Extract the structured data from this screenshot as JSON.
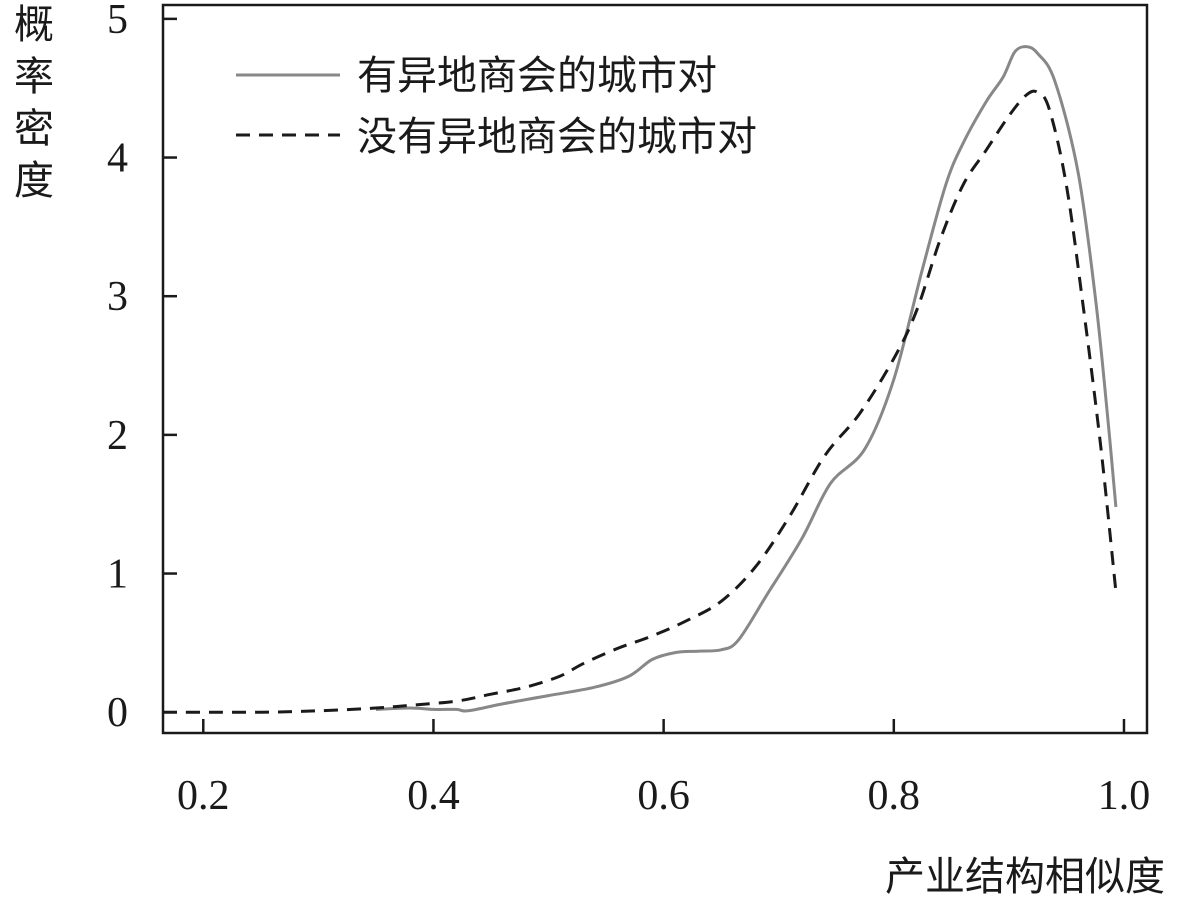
{
  "chart_data": {
    "type": "line",
    "xlabel": "产业结构相似度",
    "ylabel": "概率密度",
    "xlim": [
      0.165,
      1.02
    ],
    "ylim": [
      -0.15,
      5.1
    ],
    "xticks": [
      0.2,
      0.4,
      0.6,
      0.8,
      1.0
    ],
    "xtick_labels": [
      "0.2",
      "0.4",
      "0.6",
      "0.8",
      "1.0"
    ],
    "yticks": [
      0,
      1,
      2,
      3,
      4,
      5
    ],
    "ytick_labels": [
      "0",
      "1",
      "2",
      "3",
      "4",
      "5"
    ],
    "grid": false,
    "legend_position": "top-left",
    "series": [
      {
        "name": "有异地商会的城市对",
        "style": "solid",
        "color": "#888888",
        "x": [
          0.35,
          0.38,
          0.4,
          0.42,
          0.43,
          0.46,
          0.5,
          0.54,
          0.57,
          0.59,
          0.61,
          0.63,
          0.65,
          0.665,
          0.69,
          0.72,
          0.745,
          0.775,
          0.8,
          0.825,
          0.845,
          0.86,
          0.88,
          0.895,
          0.905,
          0.915,
          0.925,
          0.94,
          0.96,
          0.975,
          0.985,
          0.993
        ],
        "y": [
          0.02,
          0.03,
          0.02,
          0.02,
          0.01,
          0.06,
          0.12,
          0.18,
          0.26,
          0.38,
          0.43,
          0.44,
          0.45,
          0.52,
          0.85,
          1.25,
          1.65,
          1.9,
          2.4,
          3.2,
          3.8,
          4.1,
          4.4,
          4.58,
          4.76,
          4.8,
          4.75,
          4.55,
          3.9,
          3.0,
          2.2,
          1.48
        ]
      },
      {
        "name": "没有异地商会的城市对",
        "style": "dashed",
        "color": "#1a1a1a",
        "x": [
          0.165,
          0.2,
          0.25,
          0.3,
          0.35,
          0.38,
          0.42,
          0.45,
          0.48,
          0.51,
          0.53,
          0.56,
          0.59,
          0.62,
          0.65,
          0.68,
          0.71,
          0.74,
          0.77,
          0.8,
          0.82,
          0.84,
          0.86,
          0.88,
          0.9,
          0.915,
          0.925,
          0.935,
          0.95,
          0.965,
          0.98,
          0.993
        ],
        "y": [
          0.0,
          0.0,
          0.0,
          0.01,
          0.03,
          0.05,
          0.08,
          0.13,
          0.18,
          0.26,
          0.35,
          0.46,
          0.55,
          0.66,
          0.8,
          1.05,
          1.42,
          1.85,
          2.15,
          2.55,
          2.9,
          3.4,
          3.8,
          4.05,
          4.3,
          4.45,
          4.47,
          4.35,
          3.8,
          2.9,
          1.9,
          0.87
        ]
      }
    ]
  }
}
